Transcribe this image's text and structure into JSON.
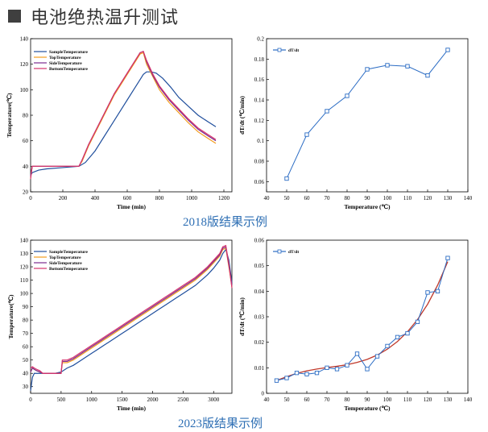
{
  "page_title": "电池绝热温升测试",
  "captions": [
    "2018版结果示例",
    "2023版结果示例"
  ],
  "colors": {
    "sample": "#1f4e9c",
    "top": "#f39c1d",
    "side": "#7a2a8f",
    "bottom": "#d6336c",
    "dtdt_line": "#2b6cc4",
    "fit": "#c0392b"
  },
  "chart_data": [
    {
      "type": "line",
      "xlabel": "Time (min)",
      "ylabel": "Temperature(℃)",
      "xlim": [
        0,
        1250
      ],
      "ylim": [
        20,
        140
      ],
      "xticks": [
        0,
        200,
        400,
        600,
        800,
        1000,
        1200
      ],
      "yticks": [
        20,
        40,
        60,
        80,
        100,
        120,
        140
      ],
      "legend": "top-left",
      "series": [
        {
          "name": "SampleTemperature",
          "x": [
            0,
            10,
            50,
            100,
            200,
            300,
            340,
            400,
            450,
            500,
            560,
            600,
            640,
            680,
            700,
            720,
            750,
            780,
            820,
            870,
            920,
            980,
            1040,
            1100,
            1150
          ],
          "y": [
            33,
            35,
            37,
            38,
            39,
            40,
            43,
            52,
            62,
            72,
            84,
            92,
            100,
            108,
            112,
            114,
            114,
            113,
            109,
            102,
            94,
            87,
            80,
            75,
            71
          ]
        },
        {
          "name": "TopTemperature",
          "x": [
            0,
            10,
            50,
            100,
            200,
            300,
            320,
            360,
            400,
            440,
            480,
            520,
            560,
            600,
            640,
            680,
            700,
            720,
            760,
            800,
            860,
            920,
            980,
            1040,
            1100,
            1150
          ],
          "y": [
            31,
            40,
            40,
            40,
            40,
            40,
            44,
            56,
            66,
            76,
            86,
            96,
            104,
            112,
            120,
            128,
            129,
            120,
            110,
            100,
            90,
            82,
            74,
            67,
            62,
            58
          ]
        },
        {
          "name": "SideTemperature",
          "x": [
            0,
            10,
            50,
            100,
            200,
            300,
            320,
            360,
            400,
            440,
            480,
            520,
            560,
            600,
            640,
            680,
            700,
            720,
            760,
            800,
            860,
            920,
            980,
            1040,
            1100,
            1150
          ],
          "y": [
            32,
            40,
            40,
            40,
            40,
            40,
            45,
            57,
            67,
            77,
            87,
            97,
            105,
            113,
            121,
            129,
            130,
            122,
            111,
            102,
            92,
            84,
            76,
            69,
            64,
            60
          ]
        },
        {
          "name": "BottomTemperature",
          "x": [
            0,
            10,
            50,
            100,
            200,
            300,
            320,
            360,
            400,
            440,
            480,
            520,
            560,
            600,
            640,
            680,
            700,
            720,
            760,
            800,
            860,
            920,
            980,
            1040,
            1100,
            1150
          ],
          "y": [
            30,
            40,
            40,
            40,
            40,
            40,
            45,
            57,
            67,
            77,
            87,
            97,
            105,
            113,
            121,
            129,
            130,
            123,
            112,
            103,
            93,
            85,
            77,
            70,
            65,
            61
          ]
        }
      ]
    },
    {
      "type": "line",
      "xlabel": "Temperature (℃)",
      "ylabel": "dT/dt (℃/min)",
      "xlim": [
        40,
        140
      ],
      "ylim": [
        0.05,
        0.2
      ],
      "xticks": [
        40,
        50,
        60,
        70,
        80,
        90,
        100,
        110,
        120,
        130,
        140
      ],
      "yticks": [
        0.06,
        0.08,
        0.1,
        0.12,
        0.14,
        0.16,
        0.18,
        0.2
      ],
      "legend": "top-left",
      "series": [
        {
          "name": "dT/dt",
          "x": [
            50,
            60,
            70,
            80,
            90,
            100,
            110,
            120,
            130
          ],
          "y": [
            0.063,
            0.106,
            0.129,
            0.144,
            0.17,
            0.174,
            0.173,
            0.164,
            0.189
          ]
        }
      ]
    },
    {
      "type": "line",
      "xlabel": "Time (min)",
      "ylabel": "Temperature(℃)",
      "xlim": [
        0,
        3300
      ],
      "ylim": [
        25,
        140
      ],
      "xticks": [
        0,
        500,
        1000,
        1500,
        2000,
        2500,
        3000
      ],
      "yticks": [
        30,
        40,
        50,
        60,
        70,
        80,
        90,
        100,
        110,
        120,
        130,
        140
      ],
      "legend": "top-left",
      "series": [
        {
          "name": "SampleTemperature",
          "x": [
            0,
            30,
            60,
            100,
            150,
            200,
            300,
            400,
            500,
            600,
            700,
            800,
            900,
            1000,
            1100,
            1200,
            1300,
            1400,
            1500,
            1600,
            1700,
            1800,
            1900,
            2000,
            2100,
            2200,
            2300,
            2400,
            2500,
            2600,
            2700,
            2800,
            2900,
            3000,
            3100,
            3150,
            3200,
            3250,
            3300
          ],
          "y": [
            27,
            37,
            40,
            40,
            40,
            40,
            40,
            40,
            41,
            44,
            46,
            49,
            52,
            55,
            58,
            61,
            64,
            67,
            70,
            73,
            76,
            79,
            82,
            85,
            88,
            91,
            94,
            97,
            100,
            103,
            106,
            110,
            114,
            119,
            125,
            130,
            133,
            125,
            108
          ]
        },
        {
          "name": "TopTemperature",
          "x": [
            0,
            30,
            60,
            100,
            150,
            200,
            300,
            400,
            500,
            520,
            600,
            700,
            800,
            900,
            1000,
            1100,
            1200,
            1300,
            1400,
            1500,
            1600,
            1700,
            1800,
            1900,
            2000,
            2100,
            2200,
            2300,
            2400,
            2500,
            2600,
            2700,
            2800,
            2900,
            3000,
            3100,
            3150,
            3200,
            3250,
            3300
          ],
          "y": [
            41,
            44,
            43,
            42,
            41,
            40,
            40,
            40,
            40,
            48,
            48,
            50,
            53,
            56,
            59,
            62,
            65,
            68,
            71,
            74,
            77,
            80,
            83,
            86,
            89,
            92,
            95,
            98,
            101,
            104,
            107,
            110,
            114,
            118,
            123,
            128,
            133,
            134,
            120,
            105
          ]
        },
        {
          "name": "SideTemperature",
          "x": [
            0,
            30,
            60,
            100,
            150,
            200,
            300,
            400,
            500,
            520,
            600,
            700,
            800,
            900,
            1000,
            1100,
            1200,
            1300,
            1400,
            1500,
            1600,
            1700,
            1800,
            1900,
            2000,
            2100,
            2200,
            2300,
            2400,
            2500,
            2600,
            2700,
            2800,
            2900,
            3000,
            3100,
            3150,
            3200,
            3250,
            3300
          ],
          "y": [
            41,
            44,
            43,
            42,
            41,
            40,
            40,
            40,
            40,
            49,
            49,
            51,
            54,
            57,
            60,
            63,
            66,
            69,
            72,
            75,
            78,
            81,
            84,
            87,
            90,
            93,
            96,
            99,
            102,
            105,
            108,
            111,
            115,
            119,
            124,
            129,
            134,
            135,
            121,
            106
          ]
        },
        {
          "name": "BottomTemperature",
          "x": [
            0,
            30,
            60,
            100,
            150,
            200,
            300,
            400,
            500,
            520,
            600,
            700,
            800,
            900,
            1000,
            1100,
            1200,
            1300,
            1400,
            1500,
            1600,
            1700,
            1800,
            1900,
            2000,
            2100,
            2200,
            2300,
            2400,
            2500,
            2600,
            2700,
            2800,
            2900,
            3000,
            3100,
            3150,
            3200,
            3250,
            3300
          ],
          "y": [
            44,
            45,
            44,
            43,
            42,
            40,
            40,
            40,
            40,
            50,
            50,
            52,
            55,
            58,
            61,
            64,
            67,
            70,
            73,
            76,
            79,
            82,
            85,
            88,
            91,
            94,
            97,
            100,
            103,
            106,
            109,
            112,
            116,
            120,
            125,
            130,
            135,
            136,
            122,
            104
          ]
        }
      ]
    },
    {
      "type": "line",
      "xlabel": "Temperature (℃)",
      "ylabel": "dT/dt (℃/min)",
      "xlim": [
        40,
        140
      ],
      "ylim": [
        0,
        0.06
      ],
      "xticks": [
        40,
        50,
        60,
        70,
        80,
        90,
        100,
        110,
        120,
        130,
        140
      ],
      "yticks": [
        0,
        0.01,
        0.02,
        0.03,
        0.04,
        0.05,
        0.06
      ],
      "legend": "top-left",
      "series": [
        {
          "name": "dT/dt",
          "x": [
            45,
            50,
            55,
            60,
            65,
            70,
            75,
            80,
            85,
            90,
            95,
            100,
            105,
            110,
            115,
            120,
            125,
            130
          ],
          "y": [
            0.005,
            0.006,
            0.008,
            0.0075,
            0.008,
            0.01,
            0.0095,
            0.011,
            0.0155,
            0.0095,
            0.0145,
            0.0185,
            0.022,
            0.0235,
            0.028,
            0.0395,
            0.04,
            0.053
          ]
        }
      ],
      "fit": {
        "x": [
          45,
          50,
          55,
          60,
          65,
          70,
          75,
          80,
          85,
          90,
          95,
          100,
          105,
          110,
          115,
          120,
          125,
          130
        ],
        "y": [
          0.005,
          0.0065,
          0.0078,
          0.0088,
          0.0095,
          0.0101,
          0.0106,
          0.0112,
          0.0121,
          0.0133,
          0.015,
          0.0173,
          0.0203,
          0.0241,
          0.0289,
          0.0349,
          0.0424,
          0.0516
        ]
      }
    }
  ]
}
